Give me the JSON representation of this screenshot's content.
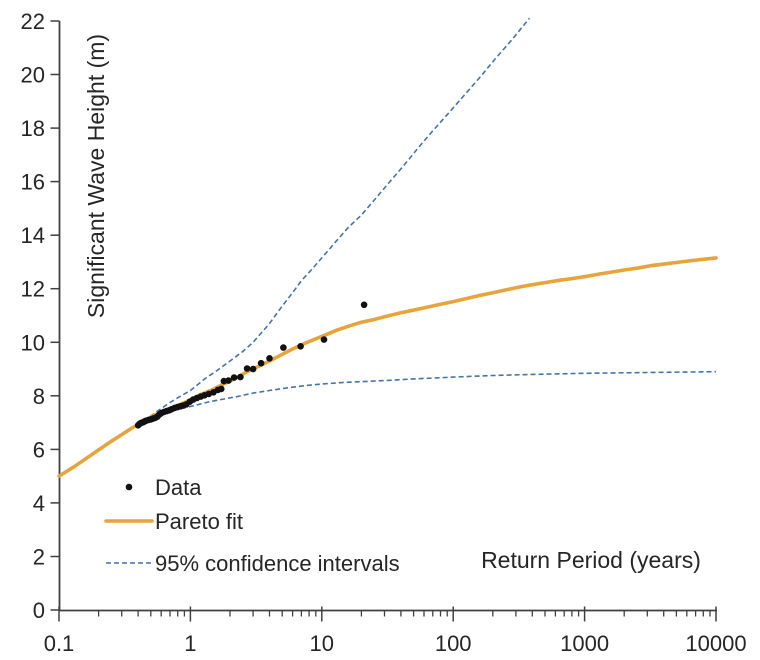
{
  "chart_data": {
    "type": "scatter+line",
    "title": "",
    "xlabel": "Return Period (years)",
    "ylabel": "Significant Wave Height (m)",
    "x_scale": "log",
    "xlim": [
      0.1,
      10000
    ],
    "ylim": [
      0,
      22
    ],
    "x_ticks": [
      0.1,
      1,
      10,
      100,
      1000,
      10000
    ],
    "x_tick_labels": [
      "0.1",
      "1",
      "10",
      "100",
      "1000",
      "10000"
    ],
    "y_ticks": [
      0,
      2,
      4,
      6,
      8,
      10,
      12,
      14,
      16,
      18,
      20,
      22
    ],
    "grid": false,
    "legend_position": "inside bottom-left",
    "series": [
      {
        "name": "Data",
        "type": "scatter",
        "marker": "dot",
        "color": "#111111",
        "points": [
          [
            0.4,
            6.9
          ],
          [
            0.41,
            6.95
          ],
          [
            0.42,
            6.98
          ],
          [
            0.43,
            7.0
          ],
          [
            0.44,
            7.02
          ],
          [
            0.45,
            7.05
          ],
          [
            0.46,
            7.07
          ],
          [
            0.48,
            7.1
          ],
          [
            0.5,
            7.12
          ],
          [
            0.52,
            7.15
          ],
          [
            0.54,
            7.18
          ],
          [
            0.56,
            7.22
          ],
          [
            0.58,
            7.3
          ],
          [
            0.6,
            7.35
          ],
          [
            0.63,
            7.4
          ],
          [
            0.66,
            7.43
          ],
          [
            0.69,
            7.46
          ],
          [
            0.72,
            7.5
          ],
          [
            0.76,
            7.55
          ],
          [
            0.8,
            7.58
          ],
          [
            0.84,
            7.61
          ],
          [
            0.88,
            7.64
          ],
          [
            0.93,
            7.68
          ],
          [
            0.99,
            7.78
          ],
          [
            1.05,
            7.86
          ],
          [
            1.12,
            7.92
          ],
          [
            1.2,
            7.97
          ],
          [
            1.28,
            8.02
          ],
          [
            1.38,
            8.07
          ],
          [
            1.5,
            8.13
          ],
          [
            1.62,
            8.22
          ],
          [
            1.72,
            8.26
          ],
          [
            1.8,
            8.55
          ],
          [
            1.95,
            8.57
          ],
          [
            2.15,
            8.68
          ],
          [
            2.4,
            8.7
          ],
          [
            2.7,
            9.02
          ],
          [
            3.0,
            9.0
          ],
          [
            3.45,
            9.22
          ],
          [
            4.0,
            9.4
          ],
          [
            5.1,
            9.8
          ],
          [
            6.9,
            9.85
          ],
          [
            10.4,
            10.1
          ],
          [
            21,
            11.4
          ]
        ]
      },
      {
        "name": "Pareto fit",
        "type": "line",
        "style": "solid",
        "color": "#E8A43C",
        "line_width": 3.6,
        "points": [
          [
            0.1,
            5.0
          ],
          [
            0.13,
            5.35
          ],
          [
            0.16,
            5.65
          ],
          [
            0.2,
            5.98
          ],
          [
            0.25,
            6.3
          ],
          [
            0.3,
            6.55
          ],
          [
            0.36,
            6.8
          ],
          [
            0.44,
            7.05
          ],
          [
            0.52,
            7.25
          ],
          [
            0.62,
            7.42
          ],
          [
            0.74,
            7.58
          ],
          [
            0.88,
            7.72
          ],
          [
            1.0,
            7.85
          ],
          [
            1.2,
            8.05
          ],
          [
            1.5,
            8.25
          ],
          [
            1.8,
            8.45
          ],
          [
            2.2,
            8.65
          ],
          [
            2.7,
            8.9
          ],
          [
            3.3,
            9.1
          ],
          [
            4.0,
            9.3
          ],
          [
            5.0,
            9.55
          ],
          [
            6.0,
            9.75
          ],
          [
            7.5,
            9.97
          ],
          [
            9.0,
            10.13
          ],
          [
            10,
            10.22
          ],
          [
            13,
            10.45
          ],
          [
            16,
            10.6
          ],
          [
            20,
            10.75
          ],
          [
            25,
            10.85
          ],
          [
            30,
            10.95
          ],
          [
            40,
            11.1
          ],
          [
            50,
            11.2
          ],
          [
            65,
            11.32
          ],
          [
            80,
            11.42
          ],
          [
            100,
            11.52
          ],
          [
            130,
            11.65
          ],
          [
            160,
            11.75
          ],
          [
            200,
            11.85
          ],
          [
            260,
            11.97
          ],
          [
            330,
            12.08
          ],
          [
            400,
            12.15
          ],
          [
            500,
            12.23
          ],
          [
            650,
            12.32
          ],
          [
            800,
            12.38
          ],
          [
            1000,
            12.45
          ],
          [
            1300,
            12.55
          ],
          [
            1600,
            12.62
          ],
          [
            2000,
            12.7
          ],
          [
            2600,
            12.78
          ],
          [
            3300,
            12.87
          ],
          [
            4000,
            12.92
          ],
          [
            5000,
            12.98
          ],
          [
            6500,
            13.05
          ],
          [
            8000,
            13.1
          ],
          [
            10000,
            13.15
          ]
        ]
      },
      {
        "name": "95% confidence intervals",
        "type": "line",
        "style": "dashed",
        "color": "#4673A8",
        "line_width": 1.6,
        "upper": [
          [
            0.44,
            7.05
          ],
          [
            0.55,
            7.4
          ],
          [
            0.7,
            7.75
          ],
          [
            0.85,
            8.0
          ],
          [
            1.0,
            8.2
          ],
          [
            1.3,
            8.65
          ],
          [
            1.6,
            8.95
          ],
          [
            2.0,
            9.3
          ],
          [
            2.5,
            9.65
          ],
          [
            3.0,
            10.0
          ],
          [
            4.0,
            10.7
          ],
          [
            5.0,
            11.35
          ],
          [
            6.0,
            11.85
          ],
          [
            7.0,
            12.3
          ],
          [
            8.5,
            12.75
          ],
          [
            10,
            13.15
          ],
          [
            13,
            13.8
          ],
          [
            16,
            14.3
          ],
          [
            20,
            14.75
          ],
          [
            26,
            15.4
          ],
          [
            33,
            16.0
          ],
          [
            42,
            16.6
          ],
          [
            55,
            17.3
          ],
          [
            70,
            17.9
          ],
          [
            90,
            18.5
          ],
          [
            120,
            19.2
          ],
          [
            160,
            19.9
          ],
          [
            210,
            20.6
          ],
          [
            280,
            21.3
          ],
          [
            380,
            22.1
          ]
        ],
        "lower": [
          [
            0.44,
            7.05
          ],
          [
            0.55,
            7.3
          ],
          [
            0.7,
            7.45
          ],
          [
            0.9,
            7.55
          ],
          [
            1.1,
            7.65
          ],
          [
            1.4,
            7.78
          ],
          [
            1.8,
            7.88
          ],
          [
            2.3,
            7.98
          ],
          [
            3.0,
            8.1
          ],
          [
            4.0,
            8.2
          ],
          [
            5.5,
            8.3
          ],
          [
            7.5,
            8.38
          ],
          [
            10,
            8.44
          ],
          [
            15,
            8.5
          ],
          [
            22,
            8.54
          ],
          [
            33,
            8.58
          ],
          [
            50,
            8.63
          ],
          [
            75,
            8.67
          ],
          [
            100,
            8.7
          ],
          [
            200,
            8.76
          ],
          [
            400,
            8.8
          ],
          [
            1000,
            8.84
          ],
          [
            3000,
            8.87
          ],
          [
            10000,
            8.9
          ]
        ]
      }
    ]
  },
  "legend": {
    "items": [
      {
        "label": "Data",
        "marker": "dot"
      },
      {
        "label": "Pareto fit",
        "marker": "solid-line"
      },
      {
        "label": "95% confidence intervals",
        "marker": "dashed-line"
      }
    ]
  },
  "colors": {
    "data_points": "#111111",
    "pareto_fit": "#E8A43C",
    "confidence_interval": "#4673A8",
    "axis": "#404040",
    "text": "#262626",
    "background": "#FFFFFF"
  }
}
